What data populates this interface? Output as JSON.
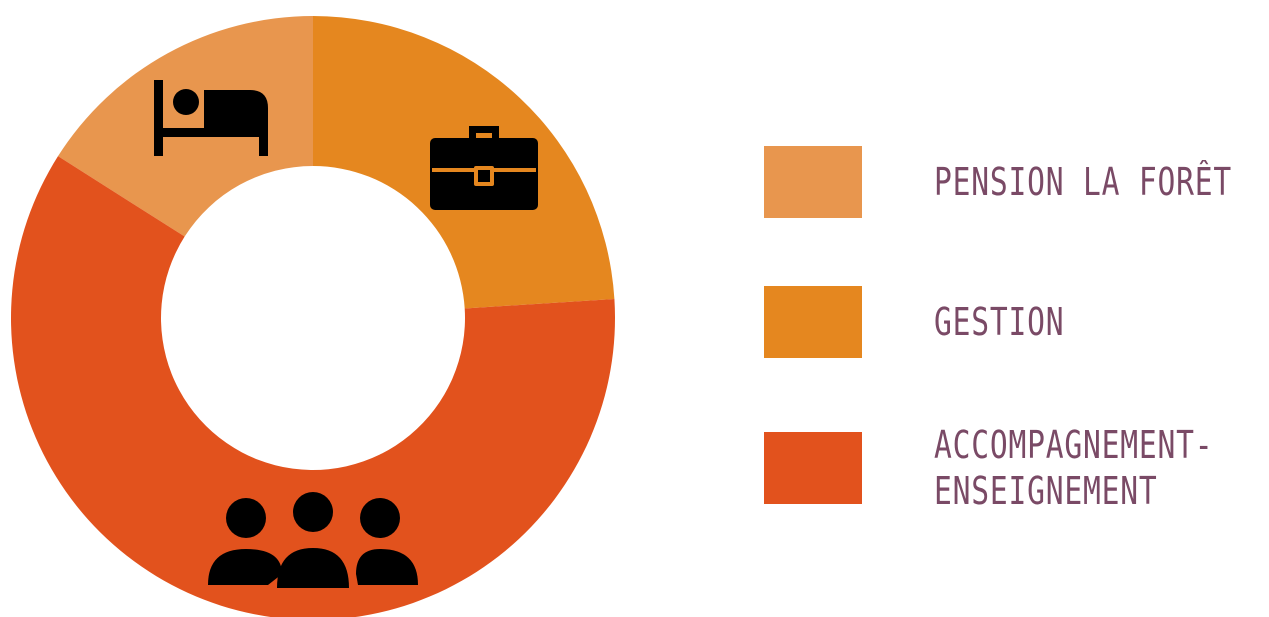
{
  "chart_data": {
    "type": "pie",
    "title": "",
    "series": [
      {
        "labels": [
          "PENSION LA FORÊT",
          "GESTION",
          "ACCOMPAGNEMENT-\nENSEIGNEMENT"
        ],
        "values": [
          16,
          24,
          60
        ],
        "colors": [
          "#e8964e",
          "#e5871f",
          "#e2521d"
        ],
        "icons": [
          "bed-icon",
          "briefcase-icon",
          "people-group-icon"
        ]
      }
    ],
    "donut": true,
    "legend_position": "right"
  }
}
